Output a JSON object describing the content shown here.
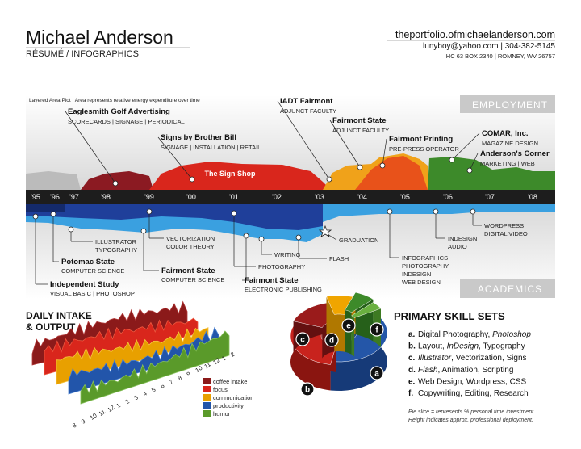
{
  "header": {
    "name": "Michael Anderson",
    "subtitle": "RÉSUMÉ / INFOGRAPHICS",
    "website": "theportfolio.ofmichaelanderson.com",
    "contact": "lunyboy@yahoo.com | 304-382-5145",
    "address": "HC 63 BOX 2340 | ROMNEY, WV 26757"
  },
  "timeline": {
    "note": "Layered Area Plot : Area represents relative energy expenditure over time",
    "employment_label": "EMPLOYMENT",
    "academics_label": "ACADEMICS",
    "years": [
      "'95",
      "'96",
      "'97",
      "'98",
      "'99",
      "'00",
      "'01",
      "'02",
      "'03",
      "'04",
      "'05",
      "'06",
      "'07",
      "'08"
    ],
    "jobs": [
      {
        "title": "Eaglesmith Golf Advertising",
        "subtitle": "SCORECARDS | SIGNAGE | PERIODICAL"
      },
      {
        "title": "Signs by Brother Bill",
        "subtitle": "SIGNAGE | INSTALLATION | RETAIL"
      },
      {
        "title": "The Sign Shop"
      },
      {
        "title": "IADT Fairmont",
        "subtitle": "ADJUNCT FACULTY"
      },
      {
        "title": "Fairmont State",
        "subtitle": "ADJUNCT FACULTY"
      },
      {
        "title": "Fairmont Printing",
        "subtitle": "PRE-PRESS OPERATOR"
      },
      {
        "title": "COMAR, Inc.",
        "subtitle": "MAGAZINE DESIGN"
      },
      {
        "title": "Anderson's Corner",
        "subtitle": "MARKETING | WEB"
      }
    ],
    "education": [
      {
        "title": "Independent Study",
        "lines": [
          "VISUAL BASIC | PHOTOSHOP"
        ]
      },
      {
        "title": "Potomac State",
        "lines": [
          "COMPUTER SCIENCE"
        ]
      },
      {
        "lines": [
          "ILLUSTRATOR",
          "TYPOGRAPHY"
        ]
      },
      {
        "lines": [
          "VECTORIZATION",
          "COLOR THEORY"
        ]
      },
      {
        "title": "Fairmont State",
        "lines": [
          "COMPUTER SCIENCE"
        ]
      },
      {
        "lines": [
          "PHOTOGRAPHY"
        ]
      },
      {
        "title": "Fairmont State",
        "lines": [
          "ELECTRONIC PUBLISHING"
        ]
      },
      {
        "lines": [
          "WRITING"
        ]
      },
      {
        "lines": [
          "FLASH"
        ]
      },
      {
        "lines": [
          "GRADUATION"
        ]
      },
      {
        "lines": [
          "INFOGRAPHICS",
          "PHOTOGRAPHY",
          "INDESIGN",
          "WEB DESIGN"
        ]
      },
      {
        "lines": [
          "INDESIGN",
          "AUDIO"
        ]
      },
      {
        "lines": [
          "WORDPRESS",
          "DIGITAL VIDEO"
        ]
      }
    ]
  },
  "daily": {
    "title": [
      "DAILY INTAKE",
      "& OUTPUT"
    ],
    "legend": [
      "coffee intake",
      "focus",
      "communication",
      "productivity",
      "humor"
    ],
    "hours": [
      "8",
      "9",
      "10",
      "11",
      "12",
      "1",
      "2",
      "3",
      "4",
      "5",
      "6",
      "7",
      "8",
      "9",
      "10",
      "11",
      "12",
      "1",
      "2"
    ]
  },
  "skills": {
    "title": "PRIMARY SKILL SETS",
    "items": [
      {
        "letter": "a.",
        "parts": [
          {
            "t": "Digital Photography, "
          },
          {
            "t": "Photoshop",
            "italic": true
          }
        ]
      },
      {
        "letter": "b.",
        "parts": [
          {
            "t": "Layout, "
          },
          {
            "t": "InDesign",
            "italic": true
          },
          {
            "t": ", Typography"
          }
        ]
      },
      {
        "letter": "c.",
        "parts": [
          {
            "t": "Illustrator",
            "italic": true
          },
          {
            "t": ", Vectorization, Signs"
          }
        ]
      },
      {
        "letter": "d.",
        "parts": [
          {
            "t": "Flash",
            "italic": true
          },
          {
            "t": ", Animation, Scripting"
          }
        ]
      },
      {
        "letter": "e.",
        "parts": [
          {
            "t": "Web Design, Wordpress, CSS"
          }
        ]
      },
      {
        "letter": "f.",
        "parts": [
          {
            "t": "Copywriting, Editing, Research"
          }
        ]
      }
    ],
    "donut_letters": [
      "a",
      "b",
      "c",
      "d",
      "e",
      "f"
    ],
    "footnote": [
      "Pie slice = represents % personal time investment.",
      "Height indicates approx. professional deployment."
    ]
  }
}
